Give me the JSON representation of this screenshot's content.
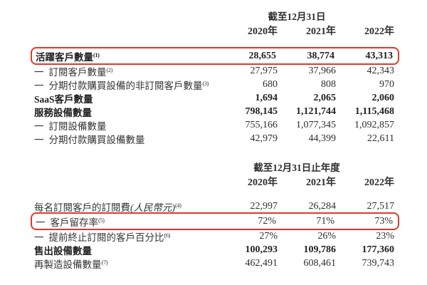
{
  "document": {
    "background": "#ffffff",
    "text_color": "#333333",
    "highlight_color": "#e0392e"
  },
  "section1": {
    "period_header": "截至12月31日",
    "years": [
      "2020年",
      "2021年",
      "2022年"
    ],
    "rows": [
      {
        "prefix": "",
        "label": "活躍客戶數量",
        "italic": "",
        "sup": "(1)",
        "values": [
          "28,655",
          "38,774",
          "43,313"
        ],
        "bold": true,
        "highlighted": true
      },
      {
        "prefix": "一",
        "label": "訂閱客戶數量",
        "italic": "",
        "sup": "(2)",
        "values": [
          "27,975",
          "37,966",
          "42,343"
        ],
        "bold": false,
        "highlighted": false
      },
      {
        "prefix": "一",
        "label": "分期付款購買設備的非訂閱客戶數量",
        "italic": "",
        "sup": "(3)",
        "values": [
          "680",
          "808",
          "970"
        ],
        "bold": false,
        "highlighted": false
      },
      {
        "prefix": "",
        "label": "SaaS客戶數量",
        "italic": "",
        "sup": "",
        "values": [
          "1,694",
          "2,065",
          "2,060"
        ],
        "bold": true,
        "highlighted": false
      },
      {
        "prefix": "",
        "label": "服務設備數量",
        "italic": "",
        "sup": "",
        "values": [
          "798,145",
          "1,121,744",
          "1,115,468"
        ],
        "bold": true,
        "highlighted": false
      },
      {
        "prefix": "一",
        "label": "訂閱設備數量",
        "italic": "",
        "sup": "",
        "values": [
          "755,166",
          "1,077,345",
          "1,092,857"
        ],
        "bold": false,
        "highlighted": false
      },
      {
        "prefix": "一",
        "label": "分期付款購買設備數量",
        "italic": "",
        "sup": "",
        "values": [
          "42,979",
          "44,399",
          "22,611"
        ],
        "bold": false,
        "highlighted": false
      }
    ]
  },
  "section2": {
    "period_header": "截至12月31日止年度",
    "years": [
      "2020年",
      "2021年",
      "2022年"
    ],
    "rows": [
      {
        "prefix": "",
        "label": "每名訂閱客戶的訂閱費",
        "italic": "(人民幣元)",
        "sup": "(4)",
        "values": [
          "22,997",
          "26,284",
          "27,517"
        ],
        "bold": false,
        "highlighted": false
      },
      {
        "prefix": "一",
        "label": "客戶留存率",
        "italic": "",
        "sup": "(5)",
        "values": [
          "72%",
          "71%",
          "73%"
        ],
        "bold": false,
        "highlighted": true
      },
      {
        "prefix": "一",
        "label": "提前終止訂閱的客戶百分比",
        "italic": "",
        "sup": "(6)",
        "values": [
          "27%",
          "26%",
          "23%"
        ],
        "bold": false,
        "highlighted": false
      },
      {
        "prefix": "",
        "label": "售出設備數量",
        "italic": "",
        "sup": "",
        "values": [
          "100,293",
          "109,786",
          "177,360"
        ],
        "bold": true,
        "highlighted": false
      },
      {
        "prefix": "",
        "label": "再製造設備數量",
        "italic": "",
        "sup": "(7)",
        "values": [
          "462,491",
          "608,461",
          "739,743"
        ],
        "bold": false,
        "highlighted": false
      }
    ]
  }
}
